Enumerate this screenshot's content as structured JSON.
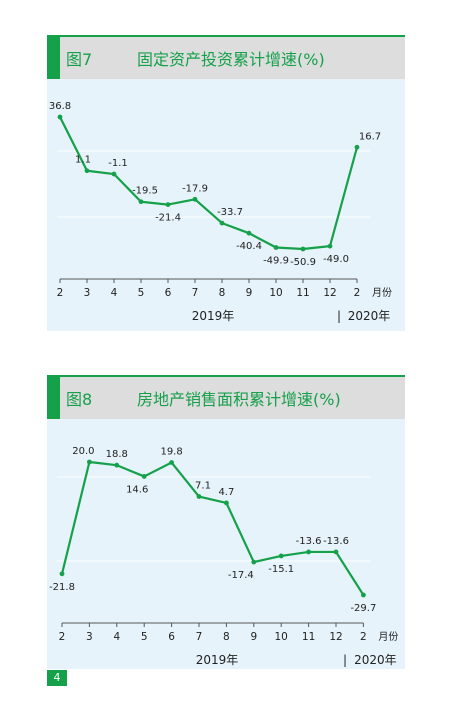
{
  "colors": {
    "accent": "#15a04a",
    "panel_bg": "#e6f3fa",
    "header_bg": "#dddddd"
  },
  "page_number": "4",
  "chart_data": [
    {
      "type": "line",
      "figure_label": "图7",
      "title": "固定资产投资累计增速(%)",
      "x": [
        "2",
        "3",
        "4",
        "5",
        "6",
        "7",
        "8",
        "9",
        "10",
        "11",
        "12",
        "2"
      ],
      "values": [
        36.8,
        1.1,
        -1.1,
        -19.5,
        -21.4,
        -17.9,
        -33.7,
        -40.4,
        -49.9,
        -50.9,
        -49.0,
        16.7
      ],
      "value_labels": [
        "36.8",
        "1.1",
        "-1.1",
        "-19.5",
        "-21.4",
        "-17.9",
        "-33.7",
        "-40.4",
        "-49.9",
        "-50.9",
        "-49.0",
        "16.7"
      ],
      "x_unit": "月份",
      "year_labels": [
        "2019年",
        "2020年"
      ],
      "separator": "|",
      "grid": true
    },
    {
      "type": "line",
      "figure_label": "图8",
      "title": "房地产销售面积累计增速(%)",
      "x": [
        "2",
        "3",
        "4",
        "5",
        "6",
        "7",
        "8",
        "9",
        "10",
        "11",
        "12",
        "2"
      ],
      "values": [
        -21.8,
        20.0,
        18.8,
        14.6,
        19.8,
        7.1,
        4.7,
        -17.4,
        -15.1,
        -13.6,
        -13.6,
        -29.7
      ],
      "value_labels": [
        "-21.8",
        "20.0",
        "18.8",
        "14.6",
        "19.8",
        "7.1",
        "4.7",
        "-17.4",
        "-15.1",
        "-13.6",
        "-13.6",
        "-29.7"
      ],
      "x_unit": "月份",
      "year_labels": [
        "2019年",
        "2020年"
      ],
      "separator": "|",
      "grid": true
    }
  ]
}
